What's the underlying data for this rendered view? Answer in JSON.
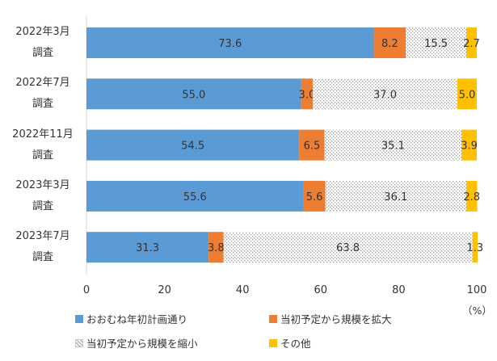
{
  "chart_data": {
    "type": "bar",
    "orientation": "horizontal",
    "stacked": true,
    "categories": [
      [
        "2022年3月",
        "調査"
      ],
      [
        "2022年7月",
        "調査"
      ],
      [
        "2022年11月",
        "調査"
      ],
      [
        "2023年3月",
        "調査"
      ],
      [
        "2023年7月",
        "調査"
      ]
    ],
    "series": [
      {
        "name": "おおむね年初計画通り",
        "color": "#5B9BD5",
        "pattern": "solid",
        "values": [
          73.6,
          55.0,
          54.5,
          55.6,
          31.3
        ]
      },
      {
        "name": "当初予定から規模を拡大",
        "color": "#ED7D31",
        "pattern": "solid",
        "values": [
          8.2,
          3.0,
          6.5,
          5.6,
          3.8
        ]
      },
      {
        "name": "当初予定から規模を縮小",
        "color": "#D9D9D9",
        "pattern": "dotted",
        "values": [
          15.5,
          37.0,
          35.1,
          36.1,
          63.8
        ]
      },
      {
        "name": "その他",
        "color": "#FFC000",
        "pattern": "solid",
        "values": [
          2.7,
          5.0,
          3.9,
          2.8,
          1.3
        ]
      }
    ],
    "data_labels": [
      [
        "73.6",
        "8.2",
        "15.5",
        "2.7"
      ],
      [
        "55.0",
        "3.0",
        "37.0",
        "5.0"
      ],
      [
        "54.5",
        "6.5",
        "35.1",
        "3.9"
      ],
      [
        "55.6",
        "5.6",
        "36.1",
        "2.8"
      ],
      [
        "31.3",
        "3.8",
        "63.8",
        "1.3"
      ]
    ],
    "xlim": [
      0,
      100
    ],
    "xticks": [
      "0",
      "20",
      "40",
      "60",
      "80",
      "100"
    ],
    "xunit": "（%）",
    "grid": false,
    "legend_position": "bottom"
  }
}
